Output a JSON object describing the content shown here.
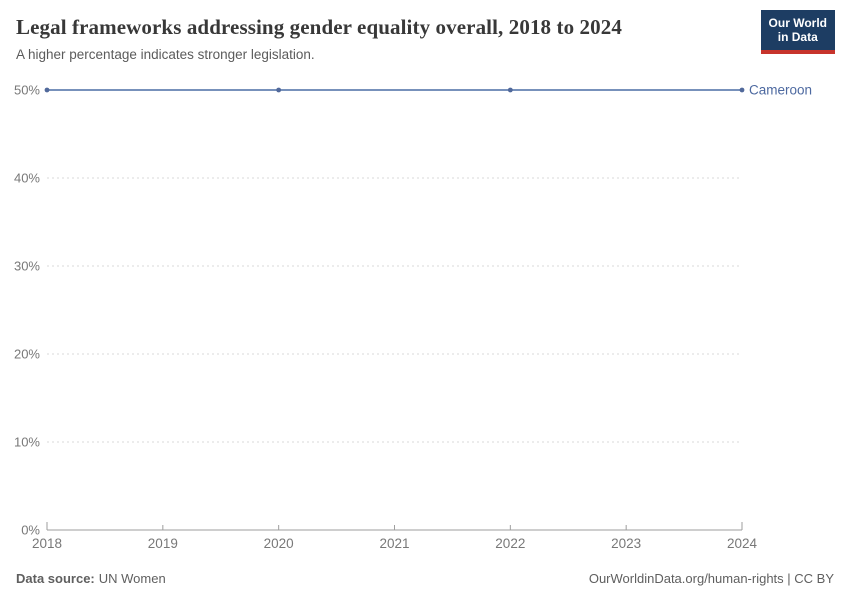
{
  "header": {
    "title": "Legal frameworks addressing gender equality overall, 2018 to 2024",
    "subtitle": "A higher percentage indicates stronger legislation.",
    "logo": {
      "line1": "Our World",
      "line2": "in Data"
    }
  },
  "footer": {
    "source_label": "Data source:",
    "source_value": "UN Women",
    "right_text": "OurWorldinData.org/human-rights | CC BY"
  },
  "colors": {
    "accent_line": "#7791bb",
    "accent_dot": "#51699b",
    "series_label": "#4d69a0",
    "grid": "#dadada",
    "axis": "#9e9e9e",
    "tick_text": "#787878",
    "logo_bg": "#1d3d63",
    "logo_red": "#c7342c",
    "title_text": "#383838"
  },
  "chart_data": {
    "type": "line",
    "title": "Legal frameworks addressing gender equality overall, 2018 to 2024",
    "subtitle": "A higher percentage indicates stronger legislation.",
    "series": [
      {
        "name": "Cameroon",
        "x": [
          2018,
          2020,
          2022,
          2024
        ],
        "values": [
          50,
          50,
          50,
          50
        ]
      }
    ],
    "xlim": [
      2018,
      2024
    ],
    "ylim": [
      0,
      50
    ],
    "xticks": [
      2018,
      2019,
      2020,
      2021,
      2022,
      2023,
      2024
    ],
    "yticks": [
      0,
      10,
      20,
      30,
      40,
      50
    ],
    "ytick_suffix": "%",
    "xlabel": "",
    "ylabel": "",
    "grid": "dashed-horizontal",
    "legend": "end-of-line-label"
  }
}
